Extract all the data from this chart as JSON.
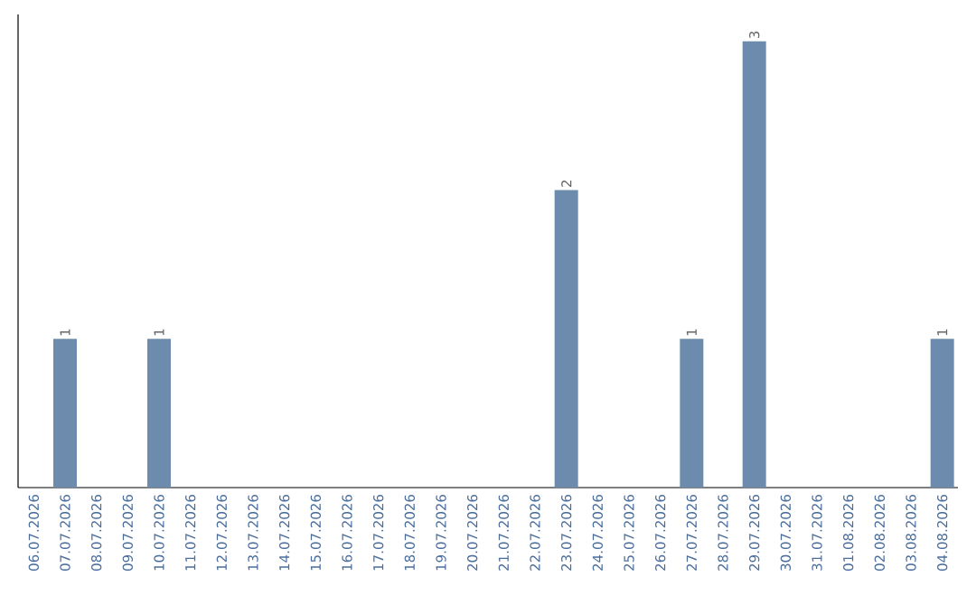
{
  "chart_data": {
    "type": "bar",
    "categories": [
      "06.07.2026",
      "07.07.2026",
      "08.07.2026",
      "09.07.2026",
      "10.07.2026",
      "11.07.2026",
      "12.07.2026",
      "13.07.2026",
      "14.07.2026",
      "15.07.2026",
      "16.07.2026",
      "17.07.2026",
      "18.07.2026",
      "19.07.2026",
      "20.07.2026",
      "21.07.2026",
      "22.07.2026",
      "23.07.2026",
      "24.07.2026",
      "25.07.2026",
      "26.07.2026",
      "27.07.2026",
      "28.07.2026",
      "29.07.2026",
      "30.07.2026",
      "31.07.2026",
      "01.08.2026",
      "02.08.2026",
      "03.08.2026",
      "04.08.2026"
    ],
    "values": [
      0,
      1,
      0,
      0,
      1,
      0,
      0,
      0,
      0,
      0,
      0,
      0,
      0,
      0,
      0,
      0,
      0,
      2,
      0,
      0,
      0,
      1,
      0,
      3,
      0,
      0,
      0,
      0,
      0,
      1
    ],
    "value_labels": [
      null,
      "1",
      null,
      null,
      "1",
      null,
      null,
      null,
      null,
      null,
      null,
      null,
      null,
      null,
      null,
      null,
      null,
      "2",
      null,
      null,
      null,
      "1",
      null,
      "3",
      null,
      null,
      null,
      null,
      null,
      "1"
    ],
    "color": "#6d8cad",
    "grid": false
  }
}
